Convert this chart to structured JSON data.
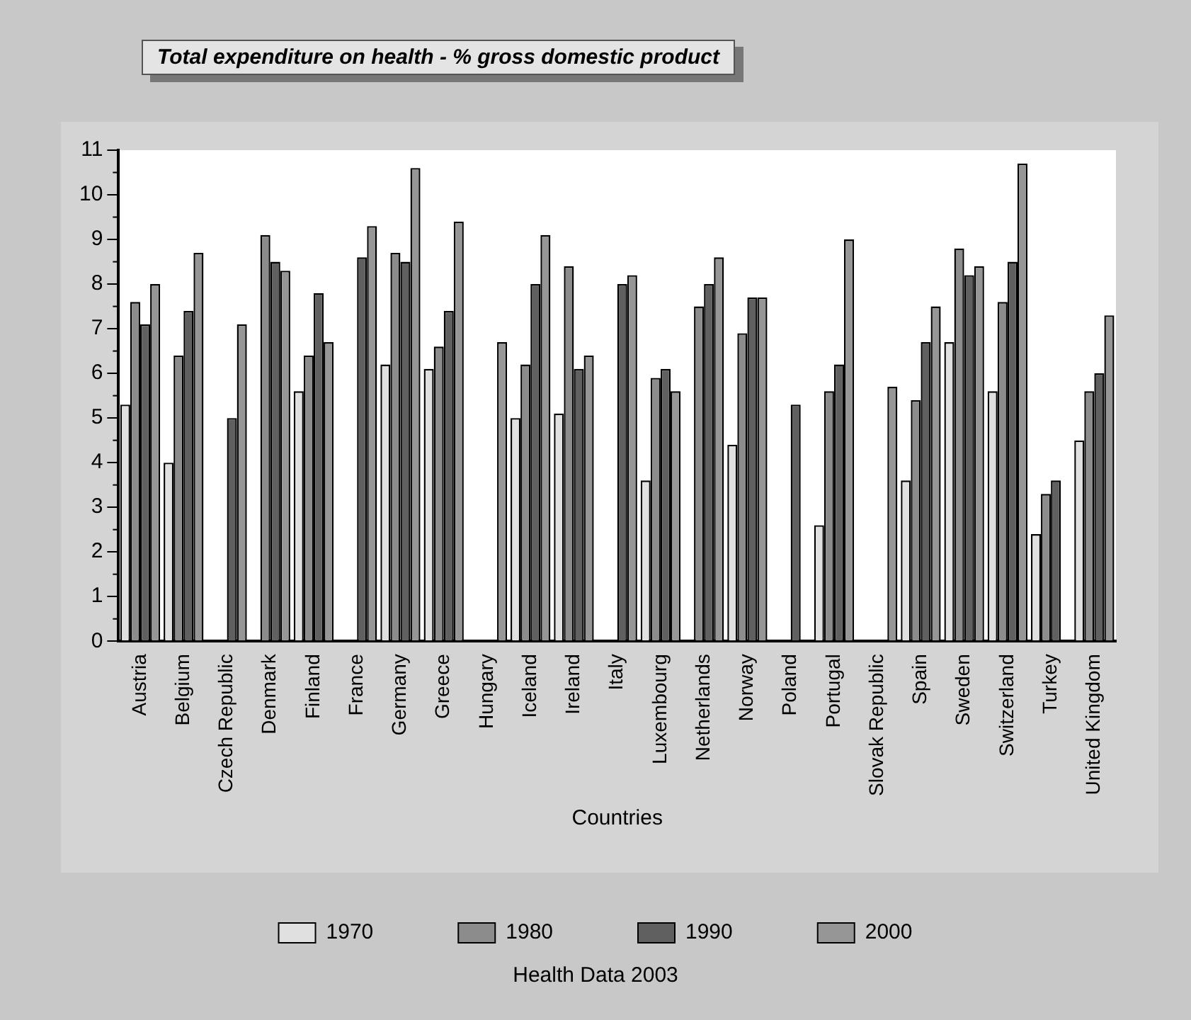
{
  "chart_data": {
    "type": "bar",
    "title": "Total expenditure on health - % gross domestic product",
    "xlabel": "Countries",
    "categories": [
      "Austria",
      "Belgium",
      "Czech Republic",
      "Denmark",
      "Finland",
      "France",
      "Germany",
      "Greece",
      "Hungary",
      "Iceland",
      "Ireland",
      "Italy",
      "Luxembourg",
      "Netherlands",
      "Norway",
      "Poland",
      "Portugal",
      "Slovak Republic",
      "Spain",
      "Sweden",
      "Switzerland",
      "Turkey",
      "United Kingdom"
    ],
    "series": [
      {
        "name": "1970",
        "color": "#e0e0e0",
        "values": [
          5.3,
          4.0,
          null,
          null,
          5.6,
          null,
          6.2,
          6.1,
          null,
          5.0,
          5.1,
          null,
          3.6,
          null,
          4.4,
          null,
          2.6,
          null,
          3.6,
          6.7,
          5.6,
          2.4,
          4.5
        ]
      },
      {
        "name": "1980",
        "color": "#8c8c8c",
        "values": [
          7.6,
          6.4,
          null,
          9.1,
          6.4,
          null,
          8.7,
          6.6,
          null,
          6.2,
          8.4,
          null,
          5.9,
          7.5,
          6.9,
          null,
          5.6,
          null,
          5.4,
          8.8,
          7.6,
          3.3,
          5.6
        ]
      },
      {
        "name": "1990",
        "color": "#606060",
        "values": [
          7.1,
          7.4,
          5.0,
          8.5,
          7.8,
          8.6,
          8.5,
          7.4,
          null,
          8.0,
          6.1,
          8.0,
          6.1,
          8.0,
          7.7,
          5.3,
          6.2,
          null,
          6.7,
          8.2,
          8.5,
          3.6,
          6.0
        ]
      },
      {
        "name": "2000",
        "color": "#969696",
        "values": [
          8.0,
          8.7,
          7.1,
          8.3,
          6.7,
          9.3,
          10.6,
          9.4,
          6.7,
          9.1,
          6.4,
          8.2,
          5.6,
          8.6,
          7.7,
          null,
          9.0,
          5.7,
          7.5,
          8.4,
          10.7,
          null,
          7.3
        ]
      }
    ],
    "ylim": [
      0,
      11
    ],
    "yticks": [
      0,
      1,
      2,
      3,
      4,
      5,
      6,
      7,
      8,
      9,
      10,
      11
    ],
    "grid": false,
    "legend": "bottom",
    "annotations": [
      "Health Data 2003"
    ]
  }
}
